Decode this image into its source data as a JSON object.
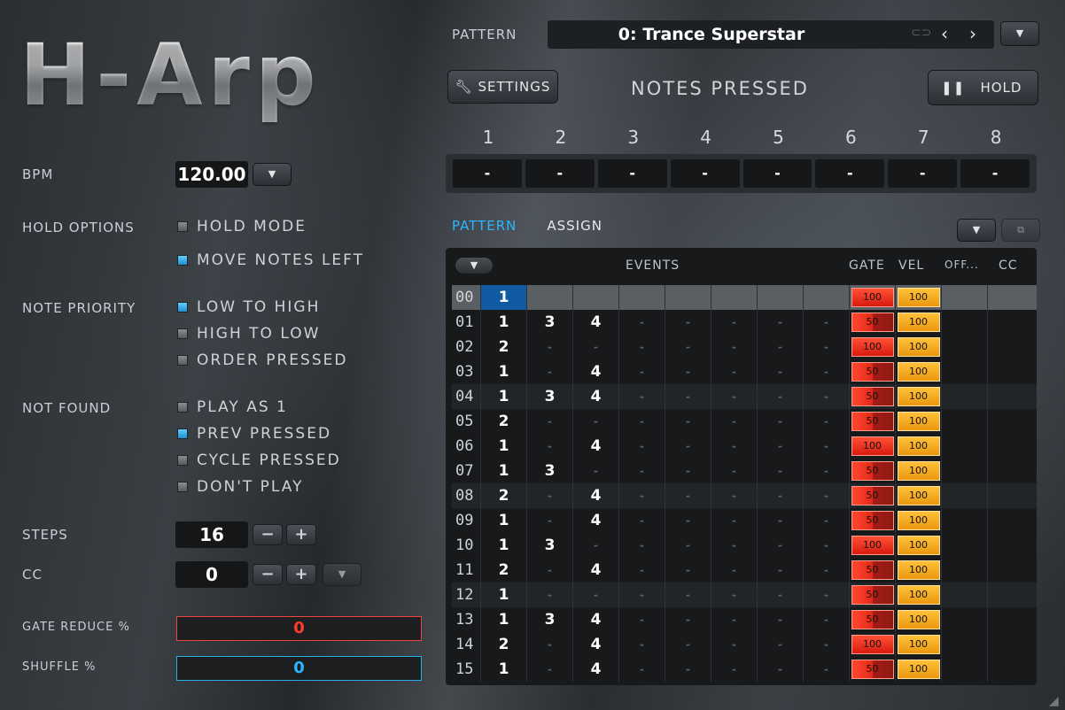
{
  "app": {
    "logo": "H-Arp"
  },
  "left": {
    "bpm_label": "BPM",
    "bpm_value": "120.00",
    "hold_options_label": "HOLD OPTIONS",
    "hold_mode": "HOLD MODE",
    "move_notes_left": "MOVE NOTES LEFT",
    "note_priority_label": "NOTE PRIORITY",
    "low_to_high": "LOW TO HIGH",
    "high_to_low": "HIGH TO LOW",
    "order_pressed": "ORDER PRESSED",
    "not_found_label": "NOT FOUND",
    "play_as_1": "PLAY AS 1",
    "prev_pressed": "PREV PRESSED",
    "cycle_pressed": "CYCLE PRESSED",
    "dont_play": "DON'T PLAY",
    "steps_label": "STEPS",
    "steps_value": "16",
    "cc_label": "CC",
    "cc_value": "0",
    "gate_reduce_label": "GATE REDUCE %",
    "gate_reduce_value": "0",
    "shuffle_label": "SHUFFLE %",
    "shuffle_value": "0",
    "minus": "−",
    "plus": "+"
  },
  "top": {
    "pattern_label": "PATTERN",
    "pattern_name": "0: Trance Superstar",
    "settings": "SETTINGS",
    "notes_pressed": "NOTES PRESSED",
    "hold": "HOLD",
    "note_columns": [
      "1",
      "2",
      "3",
      "4",
      "5",
      "6",
      "7",
      "8"
    ],
    "note_values": [
      "-",
      "-",
      "-",
      "-",
      "-",
      "-",
      "-",
      "-"
    ]
  },
  "tabs": {
    "pattern": "PATTERN",
    "assign": "ASSIGN"
  },
  "table": {
    "headers": {
      "events": "EVENTS",
      "gate": "GATE",
      "vel": "VEL",
      "off": "OFF...",
      "cc": "CC"
    },
    "rows": [
      {
        "idx": "00",
        "e": [
          "1",
          "-",
          "-",
          "-",
          "-",
          "-",
          "-",
          "-"
        ],
        "gate": "100",
        "vel": "100"
      },
      {
        "idx": "01",
        "e": [
          "1",
          "3",
          "4",
          "-",
          "-",
          "-",
          "-",
          "-"
        ],
        "gate": "50",
        "vel": "100"
      },
      {
        "idx": "02",
        "e": [
          "2",
          "-",
          "-",
          "-",
          "-",
          "-",
          "-",
          "-"
        ],
        "gate": "100",
        "vel": "100"
      },
      {
        "idx": "03",
        "e": [
          "1",
          "-",
          "4",
          "-",
          "-",
          "-",
          "-",
          "-"
        ],
        "gate": "50",
        "vel": "100"
      },
      {
        "idx": "04",
        "e": [
          "1",
          "3",
          "4",
          "-",
          "-",
          "-",
          "-",
          "-"
        ],
        "gate": "50",
        "vel": "100"
      },
      {
        "idx": "05",
        "e": [
          "2",
          "-",
          "-",
          "-",
          "-",
          "-",
          "-",
          "-"
        ],
        "gate": "50",
        "vel": "100"
      },
      {
        "idx": "06",
        "e": [
          "1",
          "-",
          "4",
          "-",
          "-",
          "-",
          "-",
          "-"
        ],
        "gate": "100",
        "vel": "100"
      },
      {
        "idx": "07",
        "e": [
          "1",
          "3",
          "-",
          "-",
          "-",
          "-",
          "-",
          "-"
        ],
        "gate": "50",
        "vel": "100"
      },
      {
        "idx": "08",
        "e": [
          "2",
          "-",
          "4",
          "-",
          "-",
          "-",
          "-",
          "-"
        ],
        "gate": "50",
        "vel": "100"
      },
      {
        "idx": "09",
        "e": [
          "1",
          "-",
          "4",
          "-",
          "-",
          "-",
          "-",
          "-"
        ],
        "gate": "50",
        "vel": "100"
      },
      {
        "idx": "10",
        "e": [
          "1",
          "3",
          "-",
          "-",
          "-",
          "-",
          "-",
          "-"
        ],
        "gate": "100",
        "vel": "100"
      },
      {
        "idx": "11",
        "e": [
          "2",
          "-",
          "4",
          "-",
          "-",
          "-",
          "-",
          "-"
        ],
        "gate": "50",
        "vel": "100"
      },
      {
        "idx": "12",
        "e": [
          "1",
          "-",
          "-",
          "-",
          "-",
          "-",
          "-",
          "-"
        ],
        "gate": "50",
        "vel": "100"
      },
      {
        "idx": "13",
        "e": [
          "1",
          "3",
          "4",
          "-",
          "-",
          "-",
          "-",
          "-"
        ],
        "gate": "50",
        "vel": "100"
      },
      {
        "idx": "14",
        "e": [
          "2",
          "-",
          "4",
          "-",
          "-",
          "-",
          "-",
          "-"
        ],
        "gate": "100",
        "vel": "100"
      },
      {
        "idx": "15",
        "e": [
          "1",
          "-",
          "4",
          "-",
          "-",
          "-",
          "-",
          "-"
        ],
        "gate": "50",
        "vel": "100"
      }
    ]
  },
  "colors": {
    "accent_blue": "#29b8ff",
    "gate_red": "#e8261a",
    "vel_yellow": "#f5b21f"
  }
}
